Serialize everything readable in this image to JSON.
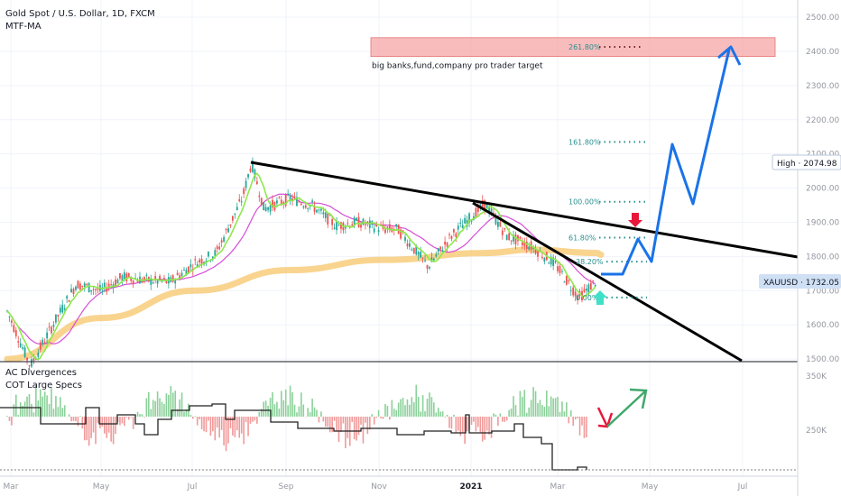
{
  "header": {
    "symbol_line": "Gold Spot / U.S. Dollar, 1D, FXCM",
    "indicator1": "MTF-MA",
    "indicator2": "AC Divergences",
    "indicator3": "COT Large Specs"
  },
  "colors": {
    "up_candle": "#26a69a",
    "down_candle": "#ef5350",
    "ma_fast": "#8ee84a",
    "ma_mid": "#d64fd6",
    "ma_slow": "#f7c56a",
    "trendline": "#000000",
    "projection": "#1a73e8",
    "target_zone": "#f6a5a5",
    "fib_text": "#2a8f8f",
    "price_badge_bg": "#cfe0f5"
  },
  "chart_data": [
    {
      "type": "line",
      "title": "Gold Spot / U.S. Dollar, 1D, FXCM",
      "x_ticks": [
        "Mar",
        "May",
        "Jul",
        "Sep",
        "Nov",
        "2021",
        "Mar",
        "May",
        "Jul"
      ],
      "y_ticks": [
        1500,
        1600,
        1700,
        1800,
        1900,
        2000,
        2100,
        2200,
        2300,
        2400,
        2500
      ],
      "ylim": [
        1495,
        2545
      ],
      "series": [
        {
          "name": "XAUUSD",
          "x": [
            "2020-03-01",
            "2020-03-16",
            "2020-04-01",
            "2020-04-15",
            "2020-05-01",
            "2020-05-15",
            "2020-06-01",
            "2020-06-15",
            "2020-07-01",
            "2020-07-15",
            "2020-08-01",
            "2020-08-07",
            "2020-08-15",
            "2020-09-01",
            "2020-09-15",
            "2020-10-01",
            "2020-10-15",
            "2020-11-01",
            "2020-11-10",
            "2020-11-30",
            "2020-12-15",
            "2021-01-06",
            "2021-01-20",
            "2021-02-05",
            "2021-02-20",
            "2021-03-08",
            "2021-03-20"
          ],
          "values": [
            1640,
            1480,
            1610,
            1720,
            1700,
            1740,
            1730,
            1725,
            1780,
            1810,
            1970,
            2075,
            1940,
            1970,
            1950,
            1890,
            1900,
            1880,
            1880,
            1770,
            1860,
            1955,
            1860,
            1830,
            1780,
            1680,
            1732
          ]
        },
        {
          "name": "MTF-MA",
          "x": [
            "2020-03-01",
            "2020-05-01",
            "2020-07-01",
            "2020-09-01",
            "2020-11-01",
            "2021-01-06",
            "2021-02-05",
            "2021-03-20"
          ],
          "values": [
            1500,
            1620,
            1700,
            1760,
            1790,
            1810,
            1820,
            1810
          ]
        }
      ],
      "annotations": {
        "current_price": "XAUUSD · 1732.05",
        "high": "High · 2074.98",
        "target_note": "big banks,fund,company pro trader target",
        "fib_levels": [
          {
            "label": "0.00%",
            "value": 1680
          },
          {
            "label": "38.20%",
            "value": 1785
          },
          {
            "label": "61.80%",
            "value": 1855
          },
          {
            "label": "100.00%",
            "value": 1960
          },
          {
            "label": "161.80%",
            "value": 2135
          },
          {
            "label": "261.80%",
            "value": 2413
          }
        ]
      }
    },
    {
      "type": "bar",
      "title": "AC Divergences / COT Large Specs",
      "y_ticks": [
        "350K",
        "250K"
      ]
    }
  ]
}
